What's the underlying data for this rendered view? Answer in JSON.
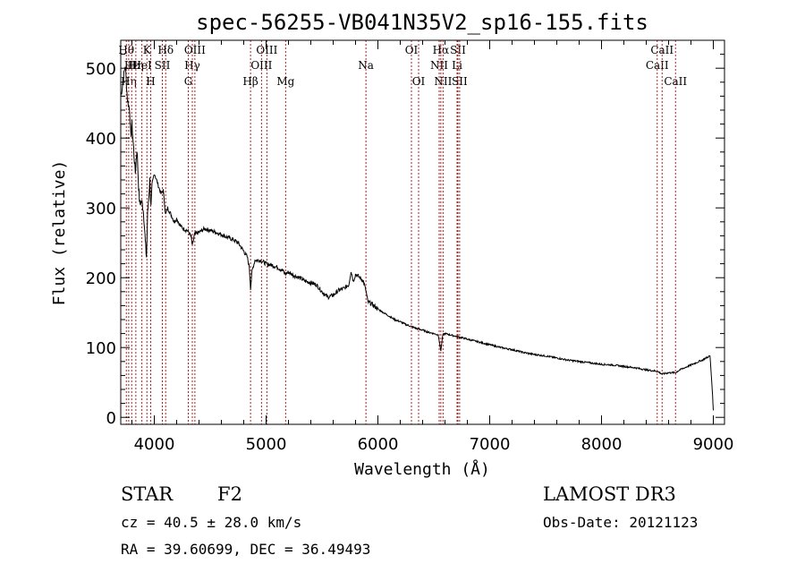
{
  "chart_data": {
    "type": "line",
    "title": "spec-56255-VB041N35V2_sp16-155.fits",
    "xlabel": "Wavelength (Å)",
    "ylabel": "Flux (relative)",
    "xlim": [
      3700,
      9100
    ],
    "ylim": [
      -10,
      540
    ],
    "xticks": [
      4000,
      5000,
      6000,
      7000,
      8000,
      9000
    ],
    "yticks": [
      0,
      100,
      200,
      300,
      400,
      500
    ],
    "series": [
      {
        "name": "spectrum",
        "points": [
          [
            3700,
            460
          ],
          [
            3720,
            480
          ],
          [
            3740,
            505
          ],
          [
            3760,
            455
          ],
          [
            3780,
            440
          ],
          [
            3790,
            400
          ],
          [
            3800,
            420
          ],
          [
            3815,
            385
          ],
          [
            3830,
            350
          ],
          [
            3845,
            385
          ],
          [
            3860,
            330
          ],
          [
            3870,
            305
          ],
          [
            3885,
            310
          ],
          [
            3900,
            300
          ],
          [
            3910,
            280
          ],
          [
            3920,
            250
          ],
          [
            3930,
            230
          ],
          [
            3940,
            290
          ],
          [
            3960,
            340
          ],
          [
            3970,
            300
          ],
          [
            3980,
            330
          ],
          [
            4000,
            350
          ],
          [
            4020,
            340
          ],
          [
            4040,
            330
          ],
          [
            4060,
            320
          ],
          [
            4080,
            325
          ],
          [
            4101,
            290
          ],
          [
            4120,
            300
          ],
          [
            4150,
            290
          ],
          [
            4180,
            280
          ],
          [
            4200,
            285
          ],
          [
            4230,
            275
          ],
          [
            4260,
            270
          ],
          [
            4290,
            268
          ],
          [
            4310,
            265
          ],
          [
            4330,
            258
          ],
          [
            4340,
            245
          ],
          [
            4360,
            262
          ],
          [
            4400,
            265
          ],
          [
            4450,
            270
          ],
          [
            4500,
            268
          ],
          [
            4550,
            265
          ],
          [
            4600,
            262
          ],
          [
            4650,
            258
          ],
          [
            4700,
            255
          ],
          [
            4750,
            250
          ],
          [
            4800,
            238
          ],
          [
            4830,
            230
          ],
          [
            4850,
            215
          ],
          [
            4861,
            185
          ],
          [
            4875,
            210
          ],
          [
            4900,
            225
          ],
          [
            4950,
            225
          ],
          [
            5000,
            220
          ],
          [
            5050,
            218
          ],
          [
            5100,
            215
          ],
          [
            5150,
            210
          ],
          [
            5170,
            205
          ],
          [
            5200,
            208
          ],
          [
            5250,
            203
          ],
          [
            5300,
            200
          ],
          [
            5350,
            195
          ],
          [
            5400,
            193
          ],
          [
            5450,
            190
          ],
          [
            5500,
            180
          ],
          [
            5550,
            172
          ],
          [
            5600,
            175
          ],
          [
            5650,
            182
          ],
          [
            5700,
            185
          ],
          [
            5740,
            190
          ],
          [
            5760,
            210
          ],
          [
            5780,
            195
          ],
          [
            5800,
            205
          ],
          [
            5840,
            200
          ],
          [
            5870,
            195
          ],
          [
            5895,
            180
          ],
          [
            5910,
            165
          ],
          [
            5950,
            162
          ],
          [
            6000,
            155
          ],
          [
            6050,
            150
          ],
          [
            6100,
            145
          ],
          [
            6150,
            140
          ],
          [
            6200,
            137
          ],
          [
            6250,
            133
          ],
          [
            6300,
            130
          ],
          [
            6350,
            127
          ],
          [
            6400,
            125
          ],
          [
            6450,
            122
          ],
          [
            6500,
            120
          ],
          [
            6540,
            118
          ],
          [
            6563,
            95
          ],
          [
            6580,
            118
          ],
          [
            6600,
            120
          ],
          [
            6650,
            118
          ],
          [
            6700,
            116
          ],
          [
            6750,
            114
          ],
          [
            6800,
            112
          ],
          [
            6900,
            108
          ],
          [
            7000,
            104
          ],
          [
            7100,
            100
          ],
          [
            7200,
            97
          ],
          [
            7300,
            93
          ],
          [
            7400,
            90
          ],
          [
            7500,
            88
          ],
          [
            7600,
            85
          ],
          [
            7700,
            82
          ],
          [
            7800,
            80
          ],
          [
            7900,
            78
          ],
          [
            8000,
            76
          ],
          [
            8100,
            75
          ],
          [
            8200,
            73
          ],
          [
            8300,
            71
          ],
          [
            8400,
            68
          ],
          [
            8498,
            66
          ],
          [
            8542,
            62
          ],
          [
            8600,
            64
          ],
          [
            8662,
            64
          ],
          [
            8700,
            68
          ],
          [
            8800,
            75
          ],
          [
            8900,
            82
          ],
          [
            8970,
            88
          ],
          [
            8990,
            40
          ],
          [
            9000,
            10
          ]
        ]
      }
    ],
    "line_markers": [
      {
        "wavelength": 3750,
        "label": "Hθ",
        "row": 1
      },
      {
        "wavelength": 3771,
        "label": "Hη",
        "row": 3
      },
      {
        "wavelength": 3798,
        "label": "Hε",
        "row": 2
      },
      {
        "wavelength": 3835,
        "label": "Hη",
        "row": 2
      },
      {
        "wavelength": 3889,
        "label": "HeI",
        "row": 2
      },
      {
        "wavelength": 3934,
        "label": "K",
        "row": 1
      },
      {
        "wavelength": 3968,
        "label": "H",
        "row": 3
      },
      {
        "wavelength": 4072,
        "label": "SII",
        "row": 2
      },
      {
        "wavelength": 4102,
        "label": "Hδ",
        "row": 1
      },
      {
        "wavelength": 4304,
        "label": "G",
        "row": 3
      },
      {
        "wavelength": 4340,
        "label": "Hγ",
        "row": 2
      },
      {
        "wavelength": 4363,
        "label": "OIII",
        "row": 1
      },
      {
        "wavelength": 4861,
        "label": "Hβ",
        "row": 3
      },
      {
        "wavelength": 4959,
        "label": "OIII",
        "row": 2
      },
      {
        "wavelength": 5007,
        "label": "OIII",
        "row": 1
      },
      {
        "wavelength": 5175,
        "label": "Mg",
        "row": 3
      },
      {
        "wavelength": 5893,
        "label": "Na",
        "row": 2
      },
      {
        "wavelength": 6300,
        "label": "OI",
        "row": 1
      },
      {
        "wavelength": 6364,
        "label": "OI",
        "row": 3
      },
      {
        "wavelength": 6548,
        "label": "NII",
        "row": 2
      },
      {
        "wavelength": 6563,
        "label": "Hα",
        "row": 1
      },
      {
        "wavelength": 6583,
        "label": "NII",
        "row": 3
      },
      {
        "wavelength": 6708,
        "label": "Li",
        "row": 2
      },
      {
        "wavelength": 6716,
        "label": "SII",
        "row": 1
      },
      {
        "wavelength": 6731,
        "label": "SII",
        "row": 3
      },
      {
        "wavelength": 8498,
        "label": "CaII",
        "row": 2
      },
      {
        "wavelength": 8542,
        "label": "CaII",
        "row": 1
      },
      {
        "wavelength": 8662,
        "label": "CaII",
        "row": 3
      }
    ],
    "marker_color": "#b22222"
  },
  "info": {
    "object_class": "STAR",
    "subclass": "F2",
    "cz": "cz = 40.5 ± 28.0 km/s",
    "coords": "RA =  39.60699, DEC =  36.49493",
    "survey": "LAMOST DR3",
    "obs_date": "Obs-Date: 20121123"
  }
}
